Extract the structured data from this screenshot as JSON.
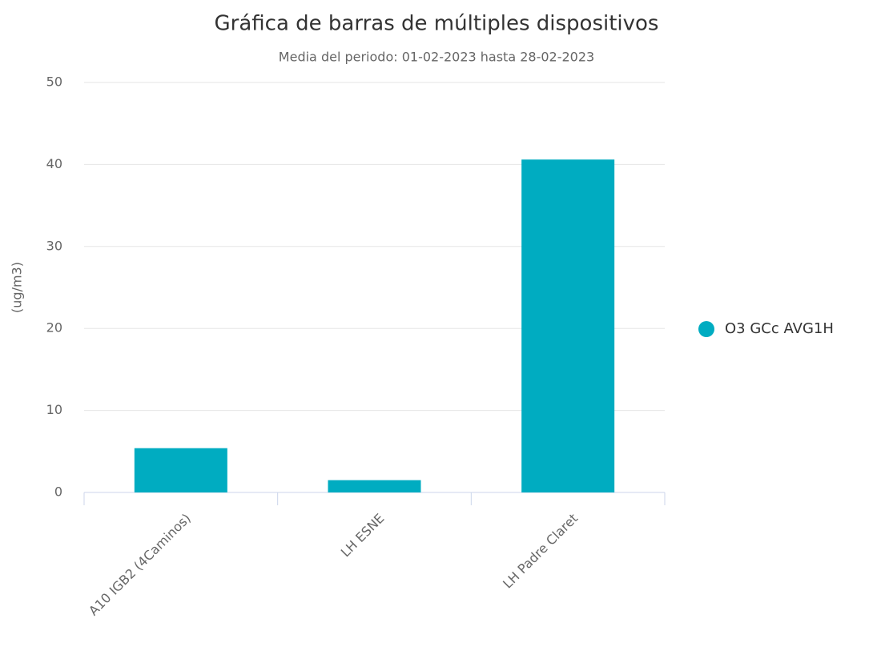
{
  "chart_data": {
    "type": "bar",
    "title": "Gráfica de barras de múltiples dispositivos",
    "subtitle": "Media del periodo: 01-02-2023 hasta 28-02-2023",
    "y_label": "(ug/m3)",
    "categories": [
      "A10 IGB2 (4Caminos)",
      "LH ESNE",
      "LH Padre Claret"
    ],
    "series": [
      {
        "name": "O3 GCc AVG1H",
        "color": "#00acc1",
        "values": [
          5.4,
          1.5,
          40.6
        ]
      }
    ],
    "ylim": [
      0,
      50
    ],
    "yticks": [
      0,
      10,
      20,
      30,
      40,
      50
    ],
    "grid": true,
    "legend": "right"
  }
}
